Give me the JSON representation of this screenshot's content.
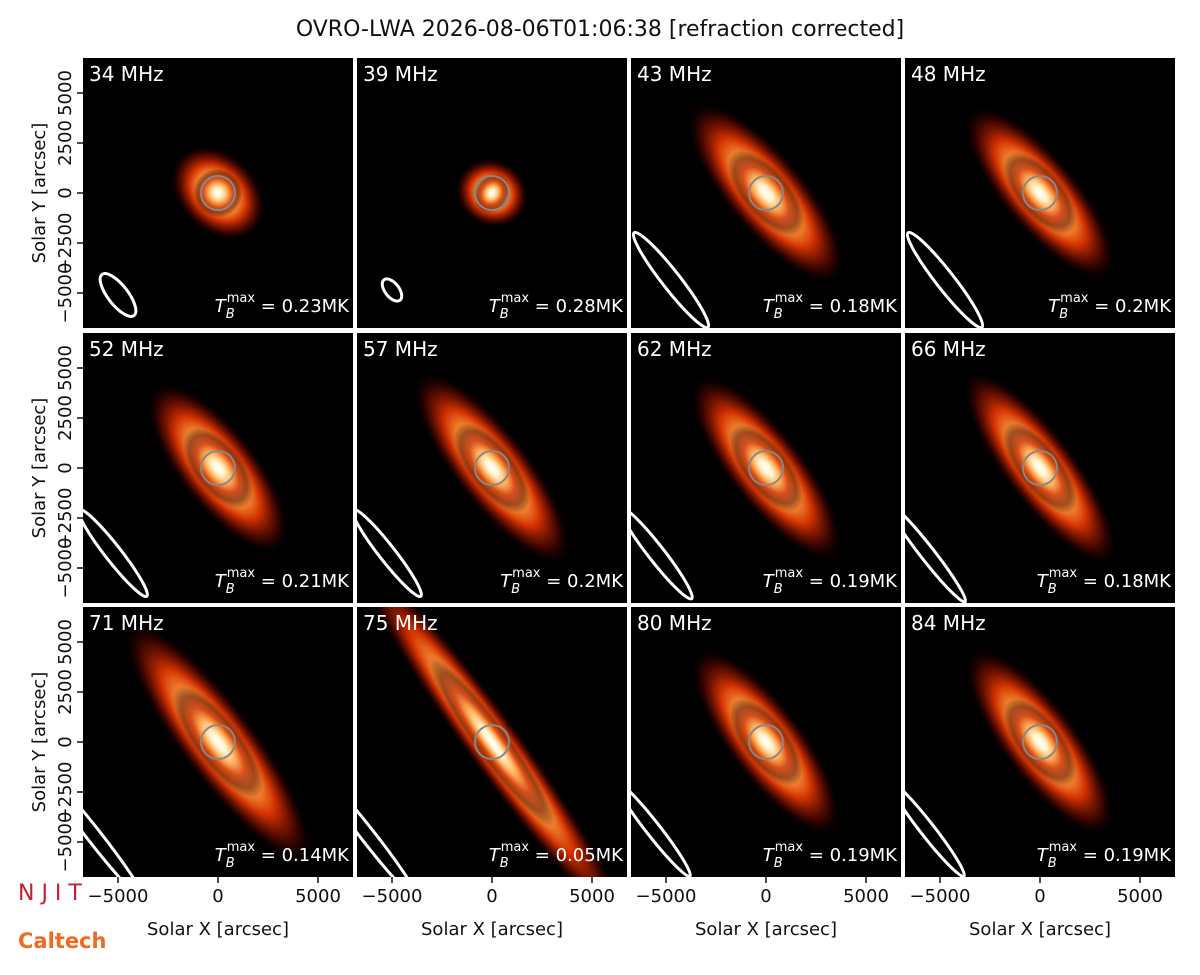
{
  "chart_data": {
    "type": "image_grid",
    "title": "OVRO-LWA 2026-08-06T01:06:38 [refraction corrected]",
    "xlabel": "Solar X [arcsec]",
    "ylabel": "Solar Y [arcsec]",
    "xlim": [
      -6750,
      6750
    ],
    "ylim": [
      -6750,
      6750
    ],
    "xticks": [
      {
        "value": -5000,
        "label": "−5000"
      },
      0,
      5000
    ],
    "yticks": [
      {
        "value": -5000,
        "label": "−5000"
      },
      {
        "value": -2500,
        "label": "−2500"
      },
      0,
      2500,
      5000
    ],
    "tb_symbol": "T",
    "tb_sub": "B",
    "tb_sup": "max",
    "tb_eq": " = ",
    "panels": [
      {
        "label": "34 MHz",
        "tb_max": "0.23MK"
      },
      {
        "label": "39 MHz",
        "tb_max": "0.28MK"
      },
      {
        "label": "43 MHz",
        "tb_max": "0.18MK"
      },
      {
        "label": "48 MHz",
        "tb_max": "0.2MK"
      },
      {
        "label": "52 MHz",
        "tb_max": "0.21MK"
      },
      {
        "label": "57 MHz",
        "tb_max": "0.2MK"
      },
      {
        "label": "62 MHz",
        "tb_max": "0.19MK"
      },
      {
        "label": "66 MHz",
        "tb_max": "0.18MK"
      },
      {
        "label": "71 MHz",
        "tb_max": "0.14MK"
      },
      {
        "label": "75 MHz",
        "tb_max": "0.05MK"
      },
      {
        "label": "80 MHz",
        "tb_max": "0.19MK"
      },
      {
        "label": "84 MHz",
        "tb_max": "0.19MK"
      }
    ],
    "logos": {
      "njit": "N J I T",
      "caltech": "Caltech"
    }
  }
}
